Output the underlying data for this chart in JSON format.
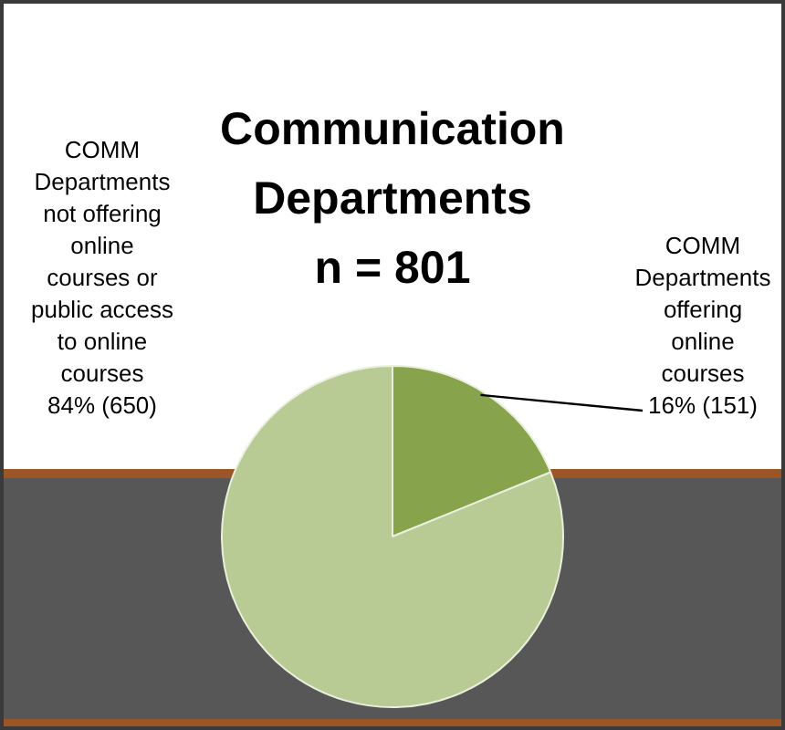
{
  "chart_data": {
    "type": "pie",
    "title": "Communication Departments",
    "subtitle": "n = 801",
    "categories": [
      "COMM Departments offering online courses",
      "COMM Departments not offering online courses or public access to online courses"
    ],
    "values": [
      151,
      650
    ],
    "colors": [
      "#87a34b",
      "#b8cb94"
    ],
    "value_labels": [
      "16% (151)",
      "84% (650)"
    ]
  }
}
